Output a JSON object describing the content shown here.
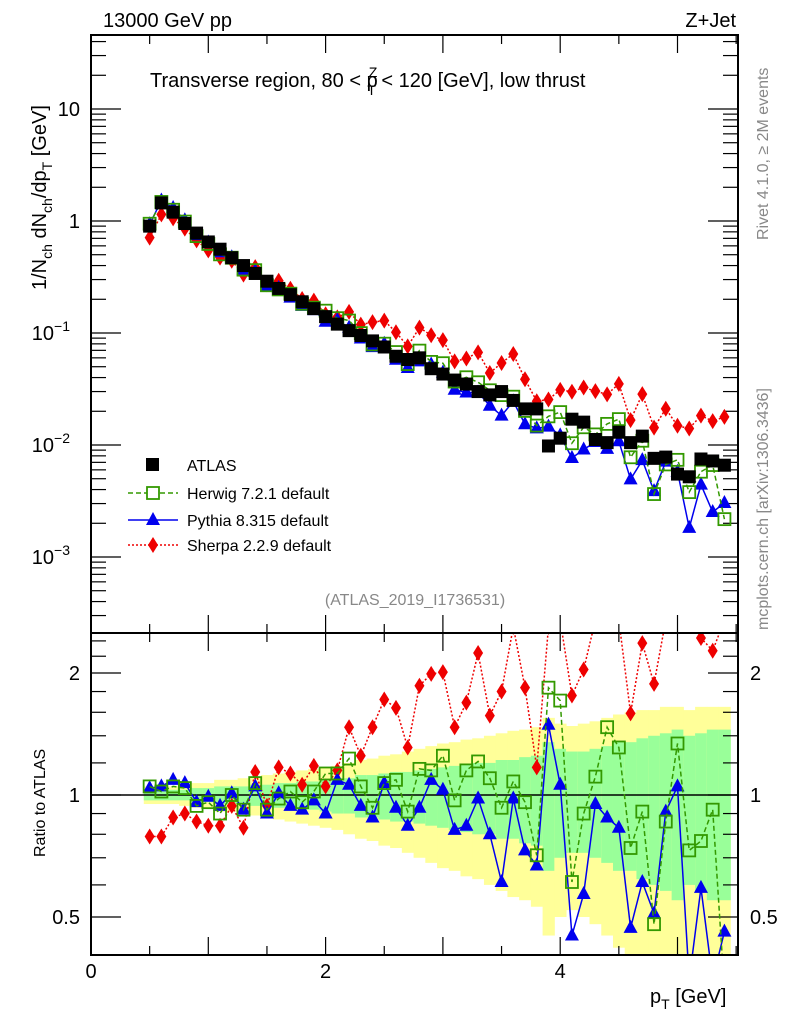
{
  "header": {
    "beam": "13000 GeV pp",
    "process": "Z+Jet",
    "title_parts": [
      "Transverse region, 80 < p",
      "Z",
      "T",
      " < 120 [GeV], low thrust"
    ]
  },
  "side": {
    "rivet": "Rivet 4.1.0, ≥ 2M events",
    "mcplots": "mcplots.cern.ch [arXiv:1306.3436]"
  },
  "analysis_id": "(ATLAS_2019_I1736531)",
  "colors": {
    "atlas": "#000000",
    "herwig": "#339900",
    "pythia": "#0000ee",
    "sherpa": "#ee0000",
    "band_inner": "#99ff99",
    "band_outer": "#ffff99"
  },
  "chart_data": {
    "type": "scatter",
    "title": "Transverse region, 80 < pT^Z < 120 [GeV], low thrust",
    "xlabel": "p_T [GeV]",
    "ylabel": "1/N_ch dN_ch/dp_T [GeV]",
    "ratio_ylabel": "Ratio to ATLAS",
    "xlim": [
      0,
      5.52
    ],
    "ylim": [
      0.00021,
      47
    ],
    "yscale": "log",
    "ratio_ylim": [
      0.4,
      2.5
    ],
    "ratio_yscale": "log",
    "x_ticks": [
      "0",
      "2",
      "4"
    ],
    "y_ticks": [
      {
        "base": "10",
        "exp": ""
      },
      {
        "base": "1",
        "exp": ""
      },
      {
        "base": "10",
        "exp": "−1"
      },
      {
        "base": "10",
        "exp": "−2"
      },
      {
        "base": "10",
        "exp": "−3"
      }
    ],
    "ratio_ticks": [
      "2",
      "1",
      "0.5"
    ],
    "legend_position": "lower-left",
    "x": [
      0.5,
      0.6,
      0.7,
      0.8,
      0.9,
      1.0,
      1.1,
      1.2,
      1.3,
      1.4,
      1.5,
      1.6,
      1.7,
      1.8,
      1.9,
      2.0,
      2.1,
      2.2,
      2.3,
      2.4,
      2.5,
      2.6,
      2.7,
      2.8,
      2.9,
      3.0,
      3.1,
      3.2,
      3.3,
      3.4,
      3.5,
      3.6,
      3.7,
      3.8,
      3.9,
      4.0,
      4.1,
      4.2,
      4.3,
      4.4,
      4.5,
      4.6,
      4.7,
      4.8,
      4.9,
      5.0,
      5.1,
      5.2,
      5.3,
      5.4
    ],
    "atlas": {
      "name": "ATLAS",
      "values": [
        0.9,
        1.45,
        1.2,
        0.95,
        0.78,
        0.65,
        0.56,
        0.47,
        0.4,
        0.34,
        0.29,
        0.25,
        0.22,
        0.19,
        0.165,
        0.14,
        0.12,
        0.105,
        0.095,
        0.085,
        0.075,
        0.062,
        0.058,
        0.06,
        0.048,
        0.043,
        0.038,
        0.035,
        0.03,
        0.028,
        0.03,
        0.025,
        0.021,
        0.021,
        0.0098,
        0.0115,
        0.017,
        0.016,
        0.0112,
        0.0105,
        0.013,
        0.0105,
        0.012,
        0.0076,
        0.0078,
        0.0055,
        0.0052,
        0.0075,
        0.0072,
        0.0066
      ],
      "band_inner_rel": [
        0.03,
        0.03,
        0.03,
        0.03,
        0.04,
        0.04,
        0.05,
        0.05,
        0.05,
        0.06,
        0.06,
        0.07,
        0.07,
        0.08,
        0.08,
        0.09,
        0.1,
        0.1,
        0.12,
        0.12,
        0.13,
        0.14,
        0.14,
        0.15,
        0.16,
        0.17,
        0.18,
        0.19,
        0.2,
        0.2,
        0.22,
        0.22,
        0.24,
        0.25,
        0.35,
        0.3,
        0.28,
        0.28,
        0.3,
        0.32,
        0.35,
        0.35,
        0.38,
        0.4,
        0.42,
        0.45,
        0.4,
        0.42,
        0.45,
        0.45
      ],
      "band_outer_rel": [
        0.05,
        0.05,
        0.05,
        0.06,
        0.07,
        0.07,
        0.09,
        0.09,
        0.1,
        0.11,
        0.12,
        0.13,
        0.14,
        0.15,
        0.16,
        0.17,
        0.18,
        0.2,
        0.22,
        0.23,
        0.25,
        0.26,
        0.28,
        0.3,
        0.32,
        0.34,
        0.35,
        0.37,
        0.38,
        0.4,
        0.42,
        0.44,
        0.45,
        0.47,
        0.55,
        0.5,
        0.48,
        0.5,
        0.52,
        0.55,
        0.58,
        0.6,
        0.62,
        0.62,
        0.65,
        0.65,
        0.62,
        0.65,
        0.65,
        0.65
      ]
    },
    "series": [
      {
        "name": "Herwig 7.2.1 default",
        "key": "herwig",
        "ratio": [
          1.05,
          1.02,
          1.05,
          1.04,
          0.94,
          0.96,
          0.9,
          1.0,
          0.92,
          1.07,
          0.92,
          0.98,
          1.02,
          0.96,
          1.02,
          1.13,
          1.13,
          1.23,
          1.05,
          0.93,
          1.07,
          1.09,
          0.91,
          1.16,
          1.15,
          1.25,
          0.97,
          1.15,
          1.21,
          1.1,
          0.93,
          1.08,
          0.96,
          0.71,
          1.84,
          1.71,
          0.61,
          0.9,
          1.11,
          1.47,
          1.31,
          0.74,
          0.91,
          0.48,
          0.86,
          1.34,
          0.73,
          0.77,
          0.92,
          0.33
        ]
      },
      {
        "name": "Pythia 8.315 default",
        "key": "pythia",
        "ratio": [
          1.04,
          1.05,
          1.09,
          1.07,
          0.96,
          0.99,
          0.94,
          1.01,
          0.92,
          1.05,
          0.9,
          1.01,
          0.94,
          0.92,
          0.97,
          0.9,
          1.09,
          1.06,
          0.94,
          0.88,
          1.07,
          0.93,
          0.84,
          0.93,
          1.09,
          1.03,
          0.82,
          0.84,
          0.98,
          0.8,
          0.61,
          0.98,
          0.73,
          0.67,
          1.49,
          1.06,
          0.45,
          0.57,
          0.95,
          0.88,
          0.83,
          0.47,
          0.61,
          0.51,
          0.91,
          1.05,
          0.35,
          0.59,
          0.35,
          0.46
        ]
      },
      {
        "name": "Sherpa 2.2.9 default",
        "key": "sherpa",
        "ratio": [
          0.79,
          0.79,
          0.88,
          0.9,
          0.86,
          0.84,
          0.84,
          0.94,
          0.83,
          1.14,
          0.94,
          1.17,
          1.13,
          1.06,
          1.18,
          1.05,
          1.15,
          1.47,
          1.25,
          1.47,
          1.72,
          1.64,
          1.31,
          1.86,
          1.99,
          2.01,
          1.47,
          1.69,
          2.24,
          1.57,
          1.8,
          2.6,
          1.84,
          1.17,
          2.6,
          2.7,
          1.76,
          2.04,
          2.7,
          2.7,
          2.7,
          1.59,
          2.37,
          1.88,
          2.7,
          2.7,
          2.7,
          2.44,
          2.27,
          2.7
        ]
      }
    ]
  }
}
